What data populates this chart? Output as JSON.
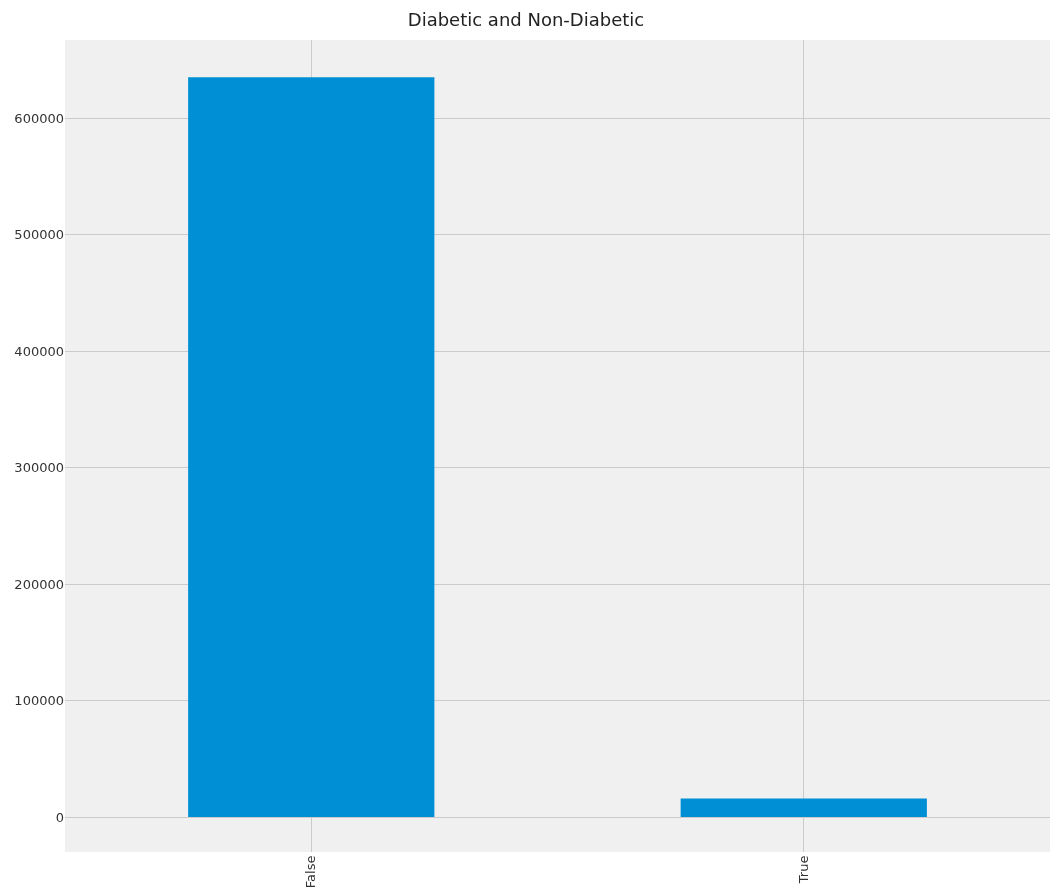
{
  "chart_data": {
    "type": "bar",
    "title": "Diabetic and Non-Diabetic",
    "categories": [
      "False",
      "True"
    ],
    "values": [
      635000,
      16000
    ],
    "color": "#008fd5",
    "ylim": [
      -30000,
      667000
    ],
    "yticks": [
      0,
      100000,
      200000,
      300000,
      400000,
      500000,
      600000
    ],
    "grid": true
  }
}
